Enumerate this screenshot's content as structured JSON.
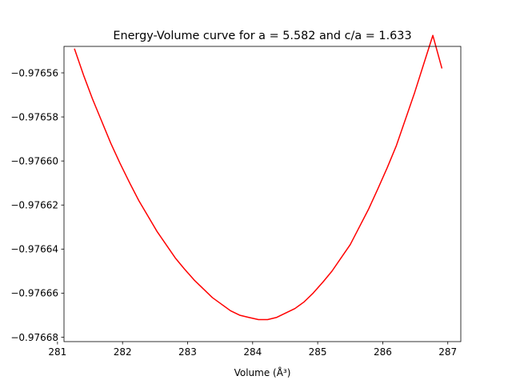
{
  "chart_data": {
    "type": "line",
    "title": "Energy-Volume curve for a = 5.582 and c/a = 1.633",
    "xlabel": "Volume (Å³)",
    "ylabel": "",
    "xlim": [
      281.1,
      287.2
    ],
    "ylim": [
      -0.976682,
      -0.976548
    ],
    "xticks": [
      281,
      282,
      283,
      284,
      285,
      286,
      287
    ],
    "xtick_labels": [
      "281",
      "282",
      "283",
      "284",
      "285",
      "286",
      "287"
    ],
    "yticks": [
      -0.97656,
      -0.97658,
      -0.9766,
      -0.97662,
      -0.97664,
      -0.97666,
      -0.97668
    ],
    "ytick_labels": [
      "−0.97656",
      "−0.97658",
      "−0.97660",
      "−0.97662",
      "−0.97664",
      "−0.97666",
      "−0.97668"
    ],
    "grid": false,
    "legend": "none",
    "series": [
      {
        "color": "#ff0000",
        "x": [
          281.26,
          281.4,
          281.54,
          281.68,
          281.82,
          281.96,
          282.11,
          282.25,
          282.39,
          282.53,
          282.67,
          282.81,
          282.95,
          283.1,
          283.24,
          283.38,
          283.52,
          283.66,
          283.8,
          283.94,
          284.09,
          284.23,
          284.37,
          284.51,
          284.65,
          284.79,
          284.93,
          285.08,
          285.22,
          285.36,
          285.5,
          285.64,
          285.78,
          285.92,
          286.07,
          286.21,
          286.35,
          286.49,
          286.63,
          286.77,
          286.91
        ],
        "y": [
          -0.976549,
          -0.976561,
          -0.976572,
          -0.976582,
          -0.976592,
          -0.976601,
          -0.97661,
          -0.976618,
          -0.976625,
          -0.976632,
          -0.976638,
          -0.976644,
          -0.976649,
          -0.976654,
          -0.976658,
          -0.976662,
          -0.976665,
          -0.976668,
          -0.97667,
          -0.976671,
          -0.976672,
          -0.976672,
          -0.976671,
          -0.976669,
          -0.976667,
          -0.976664,
          -0.97666,
          -0.976655,
          -0.97665,
          -0.976644,
          -0.976638,
          -0.97663,
          -0.976622,
          -0.976613,
          -0.976603,
          -0.976593,
          -0.976581,
          -0.976569,
          -0.976556,
          -0.976543,
          -0.976558
        ]
      }
    ]
  }
}
